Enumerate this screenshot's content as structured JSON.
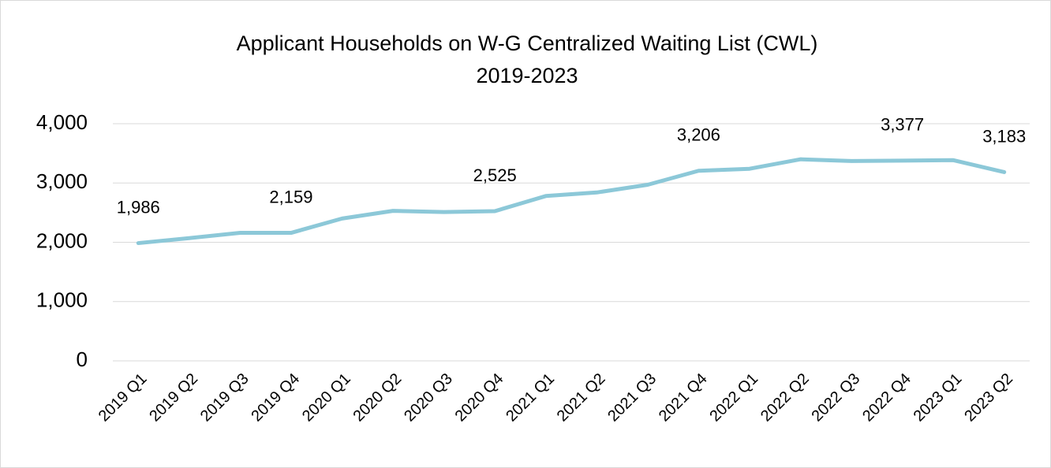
{
  "chart_data": {
    "type": "line",
    "title": [
      "Applicant Households on W-G Centralized Waiting List (CWL)",
      "2019-2023"
    ],
    "categories": [
      "2019 Q1",
      "2019 Q2",
      "2019 Q3",
      "2019 Q4",
      "2020 Q1",
      "2020 Q2",
      "2020 Q3",
      "2020 Q4",
      "2021 Q1",
      "2021 Q2",
      "2021 Q3",
      "2021 Q4",
      "2022 Q1",
      "2022 Q2",
      "2022 Q3",
      "2022 Q4",
      "2023 Q1",
      "2023 Q2"
    ],
    "series": [
      {
        "name": "Applicant Households",
        "color": "#8cc8d8",
        "values": [
          1986,
          2070,
          2160,
          2159,
          2400,
          2530,
          2510,
          2525,
          2780,
          2840,
          2970,
          3206,
          3240,
          3400,
          3370,
          3377,
          3385,
          3183
        ],
        "value_labels": [
          "1,986",
          null,
          null,
          "2,159",
          null,
          null,
          null,
          "2,525",
          null,
          null,
          null,
          "3,206",
          null,
          null,
          null,
          "3,377",
          null,
          "3,183"
        ]
      }
    ],
    "ylim": [
      0,
      4000
    ],
    "yticks": [
      0,
      {
        "value": 1000,
        "label": "1,000"
      },
      {
        "value": 2000,
        "label": "2,000"
      },
      {
        "value": 3000,
        "label": "3,000"
      },
      {
        "value": 4000,
        "label": "4,000"
      }
    ],
    "grid": true
  }
}
